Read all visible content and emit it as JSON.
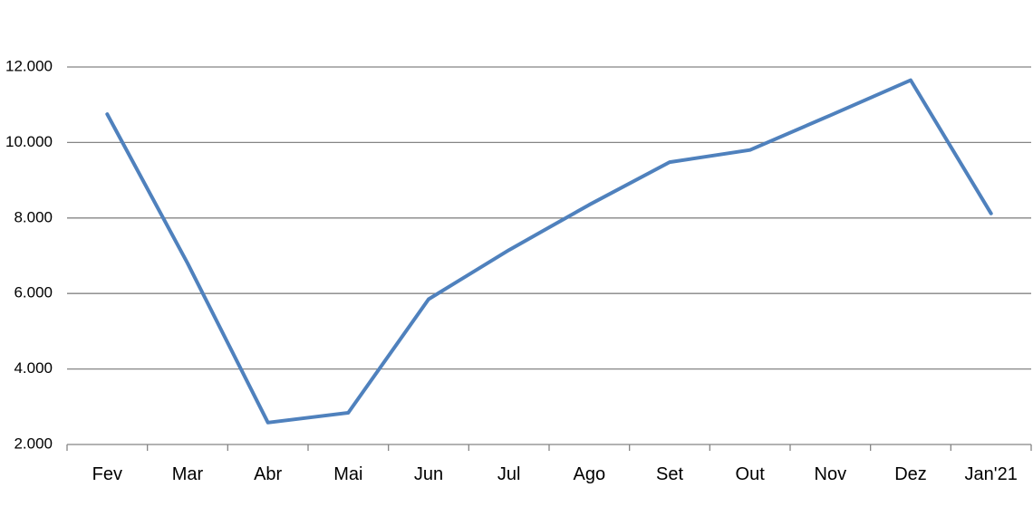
{
  "chart_data": {
    "type": "line",
    "title": "",
    "xlabel": "",
    "ylabel": "",
    "categories": [
      "Fev",
      "Mar",
      "Abr",
      "Mai",
      "Jun",
      "Jul",
      "Ago",
      "Set",
      "Out",
      "Nov",
      "Dez",
      "Jan'21"
    ],
    "series": [
      {
        "name": "",
        "values": [
          10750,
          6800,
          2580,
          2840,
          5850,
          7150,
          8350,
          9480,
          9800,
          10720,
          11650,
          8120
        ],
        "color": "#4f81bd"
      }
    ],
    "ylim": [
      2000,
      12000
    ],
    "yticks": [
      2000,
      4000,
      6000,
      8000,
      10000,
      12000
    ],
    "ytick_labels": [
      "2.000",
      "4.000",
      "6.000",
      "8.000",
      "10.000",
      "12.000"
    ],
    "grid": true,
    "legend": "none"
  }
}
